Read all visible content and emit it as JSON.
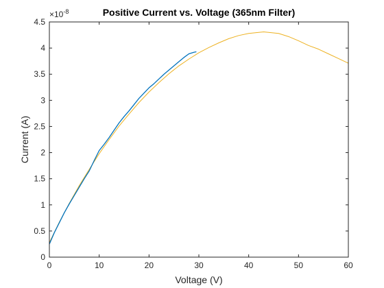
{
  "chart_data": {
    "type": "line",
    "title": "Positive Current vs. Voltage (365nm Filter)",
    "xlabel": "Voltage (V)",
    "ylabel": "Current (A)",
    "y_exponent_label": "×10",
    "y_exponent_power": "-8",
    "xlim": [
      0,
      60
    ],
    "ylim": [
      0,
      4.5e-08
    ],
    "x_ticks": [
      0,
      10,
      20,
      30,
      40,
      50,
      60
    ],
    "x_tick_labels": [
      "0",
      "10",
      "20",
      "30",
      "40",
      "50",
      "60"
    ],
    "y_ticks": [
      0,
      5e-09,
      1e-08,
      1.5e-08,
      2e-08,
      2.5e-08,
      3e-08,
      3.5e-08,
      4e-08,
      4.5e-08
    ],
    "y_tick_labels": [
      "0",
      "0.5",
      "1",
      "1.5",
      "2",
      "2.5",
      "3",
      "3.5",
      "4",
      "4.5"
    ],
    "grid": false,
    "box": true,
    "colors": {
      "measured": "#0072bd",
      "fit": "#edb120",
      "axis": "#262626"
    },
    "series": [
      {
        "style": "measured",
        "x": [
          0,
          0.5,
          1,
          2,
          3,
          4,
          5,
          6,
          7,
          8,
          9,
          10,
          11,
          12,
          13,
          14,
          15,
          16,
          17,
          18,
          19,
          20,
          21,
          22,
          23,
          24,
          25,
          26,
          27,
          28,
          29,
          29.5
        ],
        "y": [
          2.5e-09,
          3.6e-09,
          4.7e-09,
          6.6e-09,
          8.5e-09,
          1.02e-08,
          1.18e-08,
          1.34e-08,
          1.5e-08,
          1.65e-08,
          1.85e-08,
          2.04e-08,
          2.16e-08,
          2.29e-08,
          2.43e-08,
          2.57e-08,
          2.69e-08,
          2.8e-08,
          2.92e-08,
          3.04e-08,
          3.14e-08,
          3.24e-08,
          3.32e-08,
          3.41e-08,
          3.5e-08,
          3.58e-08,
          3.66e-08,
          3.74e-08,
          3.82e-08,
          3.89e-08,
          3.92e-08,
          3.93e-08
        ]
      },
      {
        "style": "fit",
        "x": [
          0,
          2,
          4,
          6,
          8,
          10,
          12,
          14,
          16,
          18,
          20,
          22,
          24,
          26,
          28,
          30,
          32,
          34,
          36,
          38,
          40,
          42,
          43,
          44,
          46,
          48,
          50,
          52,
          54,
          56,
          58,
          60
        ],
        "y": [
          2.8e-09,
          6.7e-09,
          1.03e-08,
          1.37e-08,
          1.68e-08,
          1.98e-08,
          2.25e-08,
          2.51e-08,
          2.74e-08,
          2.96e-08,
          3.16e-08,
          3.34e-08,
          3.51e-08,
          3.66e-08,
          3.79e-08,
          3.91e-08,
          4.01e-08,
          4.1e-08,
          4.18e-08,
          4.24e-08,
          4.28e-08,
          4.3e-08,
          4.31e-08,
          4.3e-08,
          4.28e-08,
          4.22e-08,
          4.14e-08,
          4.05e-08,
          3.98e-08,
          3.89e-08,
          3.8e-08,
          3.71e-08
        ]
      }
    ]
  }
}
